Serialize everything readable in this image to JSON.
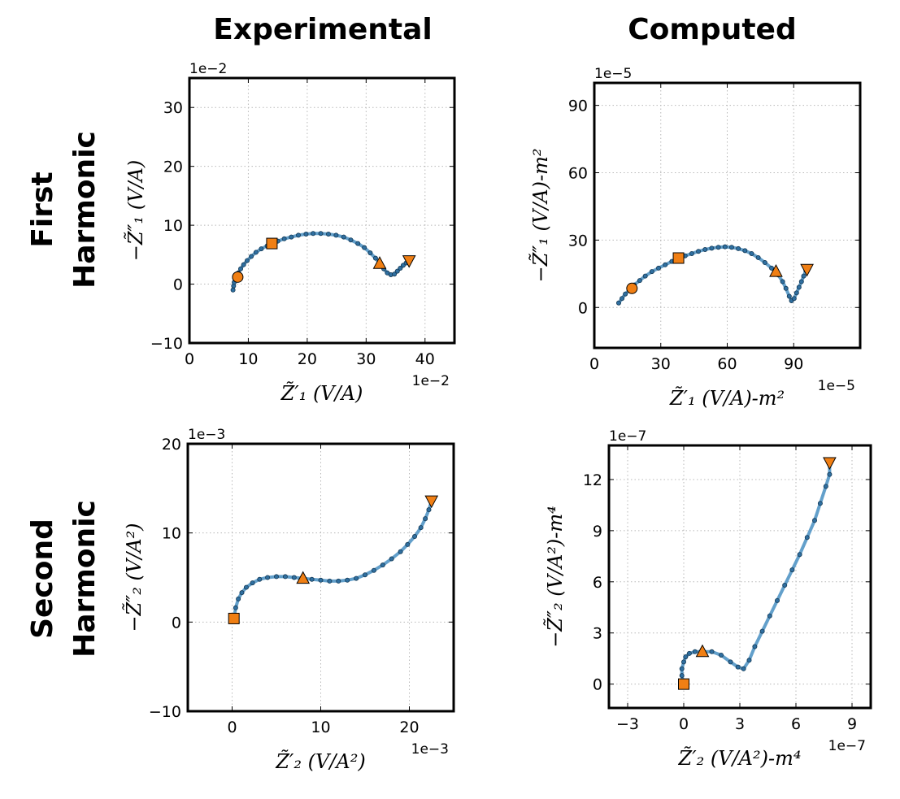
{
  "columns": [
    "Experimental",
    "Computed"
  ],
  "rows": [
    [
      "First",
      "Harmonic"
    ],
    [
      "Second",
      "Harmonic"
    ]
  ],
  "colors": {
    "curve": "#5b9bc8",
    "points": "#2f6fa0",
    "markers": "#f07f14"
  },
  "chart_data": [
    {
      "type": "line",
      "position": "top-left",
      "xlim": [
        0,
        45
      ],
      "ylim": [
        -10,
        35
      ],
      "xticks": [
        0,
        10,
        20,
        30,
        40
      ],
      "yticks": [
        -10,
        0,
        10,
        20,
        30
      ],
      "x_offset": "1e−2",
      "y_offset": "1e−2",
      "xlabel": "Z̃′₁ (V/A)",
      "ylabel": "−Z̃″₁ (V/A)",
      "grid": true,
      "series": [
        {
          "x": [
            7.4,
            7.5,
            7.6,
            7.8,
            8.0,
            8.3,
            8.7,
            9.2,
            9.8,
            10.5,
            11.3,
            12.2,
            13.2,
            14.0,
            15.0,
            16.1,
            17.3,
            18.5,
            19.8,
            21.0,
            22.3,
            23.6,
            24.9,
            26.2,
            27.4,
            28.6,
            29.7,
            30.7,
            31.6,
            32.3,
            33.0,
            33.6,
            34.2,
            34.8,
            35.3,
            35.8,
            36.3,
            36.8,
            37.3
          ],
          "y": [
            -1.0,
            -0.3,
            0.3,
            0.8,
            1.2,
            1.9,
            2.6,
            3.3,
            4.0,
            4.7,
            5.4,
            6.0,
            6.5,
            6.9,
            7.3,
            7.7,
            8.0,
            8.3,
            8.5,
            8.6,
            8.6,
            8.5,
            8.3,
            8.0,
            7.5,
            6.9,
            6.2,
            5.3,
            4.4,
            3.5,
            2.6,
            1.9,
            1.6,
            1.7,
            2.2,
            2.7,
            3.2,
            3.6,
            4.0
          ]
        }
      ],
      "markers": [
        {
          "shape": "circle",
          "x": 8.2,
          "y": 1.2
        },
        {
          "shape": "square",
          "x": 14.0,
          "y": 6.9
        },
        {
          "shape": "triangle-up",
          "x": 32.3,
          "y": 3.5
        },
        {
          "shape": "triangle-down",
          "x": 37.3,
          "y": 4.0
        }
      ]
    },
    {
      "type": "line",
      "position": "top-right",
      "xlim": [
        0,
        120
      ],
      "ylim": [
        -18,
        100
      ],
      "xticks": [
        0,
        30,
        60,
        90
      ],
      "yticks": [
        0,
        30,
        60,
        90
      ],
      "x_offset": "1e−5",
      "y_offset": "1e−5",
      "xlabel": "Z̃′₁ (V/A)-m²",
      "ylabel": "−Z̃″₁ (V/A)-m²",
      "grid": true,
      "series": [
        {
          "x": [
            11,
            12.5,
            14,
            16,
            18,
            20.5,
            23,
            26,
            29,
            32,
            35,
            38,
            41,
            44,
            47,
            50,
            53,
            56,
            59,
            62,
            65,
            68,
            71,
            74,
            77,
            80,
            83,
            85,
            86.5,
            88,
            89,
            90.2,
            91.3,
            92.4,
            93.5,
            94.5,
            95.5
          ],
          "y": [
            2,
            4,
            6,
            8,
            10,
            12,
            14,
            16,
            17.5,
            19,
            20.5,
            22,
            23,
            24,
            25,
            25.8,
            26.4,
            26.8,
            27,
            26.8,
            26.2,
            25.3,
            24,
            22.2,
            20,
            17.5,
            14.5,
            11.5,
            8.5,
            5,
            3,
            4,
            6.5,
            9,
            11.5,
            14,
            16.5
          ]
        }
      ],
      "markers": [
        {
          "shape": "circle",
          "x": 17,
          "y": 8.5
        },
        {
          "shape": "square",
          "x": 38,
          "y": 22
        },
        {
          "shape": "triangle-up",
          "x": 82,
          "y": 16
        },
        {
          "shape": "triangle-down",
          "x": 96,
          "y": 17
        }
      ]
    },
    {
      "type": "line",
      "position": "bottom-left",
      "xlim": [
        -5,
        25
      ],
      "ylim": [
        -10,
        20
      ],
      "xticks": [
        0,
        10,
        20
      ],
      "yticks": [
        -10,
        0,
        10,
        20
      ],
      "x_offset": "1e−3",
      "y_offset": "1e−3",
      "xlabel": "Z̃′₂ (V/A²)",
      "ylabel": "−Z̃″₂ (V/A²)",
      "grid": true,
      "series": [
        {
          "x": [
            0.2,
            0.4,
            0.7,
            1.1,
            1.6,
            2.3,
            3.1,
            4.0,
            5.0,
            6.0,
            7.0,
            8.0,
            9.0,
            10.0,
            11.0,
            12.0,
            13.0,
            14.0,
            15.0,
            16.0,
            17.0,
            18.0,
            19.0,
            19.8,
            20.6,
            21.3,
            21.8,
            22.2,
            22.5
          ],
          "y": [
            0.4,
            1.6,
            2.6,
            3.3,
            3.9,
            4.4,
            4.8,
            5.0,
            5.1,
            5.1,
            5.0,
            4.9,
            4.8,
            4.7,
            4.6,
            4.6,
            4.7,
            4.9,
            5.3,
            5.8,
            6.4,
            7.1,
            7.9,
            8.7,
            9.6,
            10.6,
            11.6,
            12.6,
            13.6
          ]
        }
      ],
      "markers": [
        {
          "shape": "square",
          "x": 0.2,
          "y": 0.4
        },
        {
          "shape": "triangle-up",
          "x": 8.0,
          "y": 4.9
        },
        {
          "shape": "triangle-down",
          "x": 22.5,
          "y": 13.6
        }
      ]
    },
    {
      "type": "line",
      "position": "bottom-right",
      "xlim": [
        -4,
        10
      ],
      "ylim": [
        -1.4,
        14
      ],
      "xticks": [
        -3,
        0,
        3,
        6,
        9
      ],
      "yticks": [
        0,
        3,
        6,
        9,
        12
      ],
      "x_offset": "1e−7",
      "y_offset": "1e−7",
      "xlabel": "Z̃′₂ (V/A²)-m⁴",
      "ylabel": "−Z̃″₂ (V/A²)-m⁴",
      "grid": true,
      "series": [
        {
          "x": [
            0.0,
            -0.1,
            -0.1,
            0.0,
            0.1,
            0.3,
            0.6,
            1.0,
            1.5,
            2.0,
            2.5,
            2.9,
            3.2,
            3.5,
            3.8,
            4.2,
            4.6,
            5.0,
            5.4,
            5.8,
            6.2,
            6.6,
            7.0,
            7.3,
            7.6,
            7.8,
            7.8
          ],
          "y": [
            0.0,
            0.5,
            0.9,
            1.3,
            1.6,
            1.8,
            1.9,
            1.9,
            1.9,
            1.7,
            1.3,
            1.0,
            0.9,
            1.4,
            2.2,
            3.1,
            4.0,
            4.9,
            5.8,
            6.7,
            7.6,
            8.6,
            9.6,
            10.6,
            11.6,
            12.3,
            13.0
          ]
        }
      ],
      "markers": [
        {
          "shape": "square",
          "x": 0.0,
          "y": 0.0
        },
        {
          "shape": "triangle-up",
          "x": 1.0,
          "y": 1.9
        },
        {
          "shape": "triangle-down",
          "x": 7.8,
          "y": 13.0
        }
      ]
    }
  ]
}
